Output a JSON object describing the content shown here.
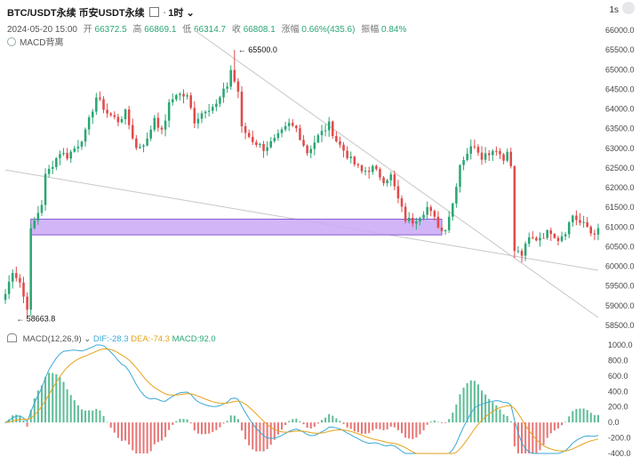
{
  "header": {
    "title": "BTC/USDT永续",
    "exchange": "币安USDT永续",
    "interval": "1时",
    "seconds_chip": "1s",
    "ohlc": {
      "date": "2024-05-20 15:00",
      "open_label": "开",
      "open": "66372.5",
      "high_label": "高",
      "high": "66869.1",
      "low_label": "低",
      "low": "66314.7",
      "close_label": "收",
      "close": "66808.1",
      "change_label": "涨幅",
      "change": "0.66%(435.6)",
      "amp_label": "振幅",
      "amp": "0.84%"
    },
    "indicator_label": "MACD背离"
  },
  "macd_legend": {
    "name": "MACD(12,26,9)",
    "dif": "DIF:-28.3",
    "dea": "DEA:-74.3",
    "macd": "MACD:92.0"
  },
  "colors": {
    "up": "#2aa774",
    "down": "#e24a4a",
    "rect_fill": "#c9a8f5",
    "rect_stroke": "#8a5cd8",
    "trend": "#c7c7c7",
    "dif": "#3aa8d8",
    "dea": "#e6a21a"
  },
  "chart_data": [
    {
      "type": "candlestick",
      "ylim": [
        58500,
        66000
      ],
      "y_ticks": [
        "66000.0",
        "65500.0",
        "65000.0",
        "64500.0",
        "64000.0",
        "63500.0",
        "63000.0",
        "62500.0",
        "62000.0",
        "61500.0",
        "61000.0",
        "60500.0",
        "60000.0",
        "59500.0",
        "59000.0",
        "58500.0"
      ],
      "annotations": [
        {
          "text": "65500.0",
          "x": 63,
          "y": 65500
        },
        {
          "text": "58663.8",
          "x": 2,
          "y": 58663.8
        }
      ],
      "anchors": [
        [
          0,
          59300
        ],
        [
          2,
          59900
        ],
        [
          4,
          59600
        ],
        [
          6,
          58860
        ],
        [
          7,
          60900
        ],
        [
          8,
          61150
        ],
        [
          10,
          61600
        ],
        [
          11,
          62300
        ],
        [
          13,
          62600
        ],
        [
          15,
          62900
        ],
        [
          17,
          62800
        ],
        [
          20,
          63100
        ],
        [
          22,
          63400
        ],
        [
          25,
          64300
        ],
        [
          28,
          63900
        ],
        [
          31,
          63700
        ],
        [
          33,
          63900
        ],
        [
          36,
          63000
        ],
        [
          39,
          63200
        ],
        [
          41,
          63800
        ],
        [
          43,
          63400
        ],
        [
          45,
          64100
        ],
        [
          47,
          64400
        ],
        [
          50,
          64300
        ],
        [
          52,
          63700
        ],
        [
          55,
          64000
        ],
        [
          58,
          64100
        ],
        [
          61,
          64600
        ],
        [
          63,
          65400
        ],
        [
          65,
          63500
        ],
        [
          68,
          63200
        ],
        [
          71,
          63000
        ],
        [
          74,
          63200
        ],
        [
          78,
          63600
        ],
        [
          80,
          63500
        ],
        [
          83,
          62900
        ],
        [
          86,
          63300
        ],
        [
          89,
          63600
        ],
        [
          91,
          63200
        ],
        [
          95,
          62700
        ],
        [
          98,
          62400
        ],
        [
          101,
          62500
        ],
        [
          104,
          62200
        ],
        [
          106,
          62300
        ],
        [
          108,
          61700
        ],
        [
          110,
          61200
        ],
        [
          112,
          61150
        ],
        [
          114,
          61300
        ],
        [
          116,
          61500
        ],
        [
          118,
          61200
        ],
        [
          120,
          60900
        ],
        [
          121,
          61000
        ],
        [
          123,
          61600
        ],
        [
          125,
          62600
        ],
        [
          127,
          62900
        ],
        [
          129,
          63100
        ],
        [
          131,
          62800
        ],
        [
          133,
          62900
        ],
        [
          135,
          63000
        ],
        [
          137,
          62700
        ],
        [
          138,
          63000
        ],
        [
          139,
          62500
        ],
        [
          140,
          60400
        ],
        [
          142,
          60300
        ],
        [
          144,
          60700
        ],
        [
          146,
          60700
        ],
        [
          148,
          60800
        ],
        [
          150,
          60900
        ],
        [
          152,
          60700
        ],
        [
          154,
          60900
        ],
        [
          156,
          61300
        ],
        [
          158,
          61100
        ],
        [
          160,
          61000
        ],
        [
          161,
          60850
        ],
        [
          163,
          60900
        ]
      ],
      "sub_series": {
        "dif_end": -28.3,
        "dea_end": -74.3,
        "macd_end": 92.0
      }
    },
    {
      "type": "macd",
      "ylim": [
        -400,
        1000
      ],
      "y_ticks": [
        "1000.0",
        "800.0",
        "600.0",
        "400.0",
        "200.0",
        "0.0",
        "-200.0",
        "-400.0"
      ]
    }
  ],
  "drawings": {
    "zone": {
      "x_start": 7,
      "x_end": 120,
      "y_low": 60800,
      "y_high": 61200
    },
    "trendlines": [
      {
        "x1": 0,
        "y1": 62450,
        "x2": 163,
        "y2": 59900
      },
      {
        "x1": 52,
        "y1": 66000,
        "x2": 163,
        "y2": 58700
      }
    ]
  }
}
